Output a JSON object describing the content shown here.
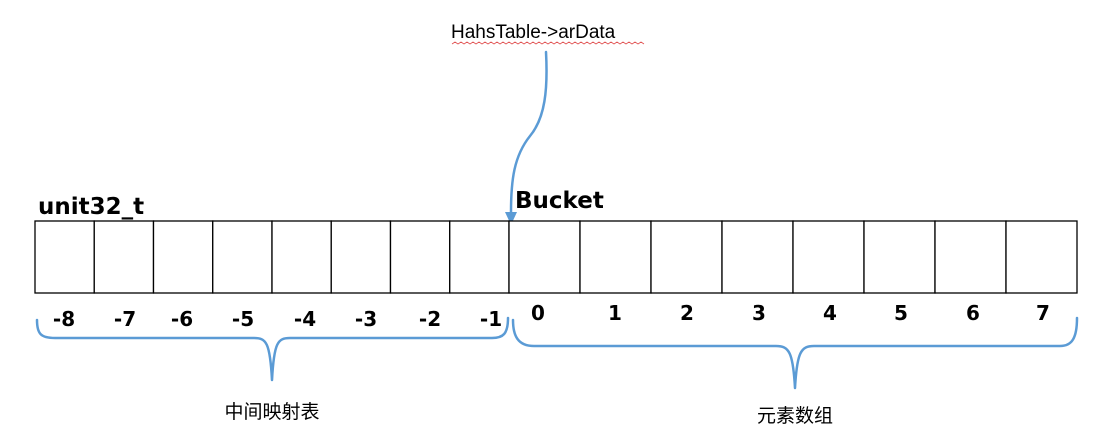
{
  "pointer_label": "HahsTable->arData",
  "left_block": {
    "title": "unit32_t",
    "indices": [
      "-8",
      "-7",
      "-6",
      "-5",
      "-4",
      "-3",
      "-2",
      "-1"
    ],
    "caption": "中间映射表"
  },
  "right_block": {
    "title": "Bucket",
    "indices": [
      "0",
      "1",
      "2",
      "3",
      "4",
      "5",
      "6",
      "7"
    ],
    "caption": "元素数组"
  },
  "colors": {
    "accent": "#5B9BD5",
    "cell_border": "#000000",
    "spellcheck_underline": "#e05050"
  }
}
